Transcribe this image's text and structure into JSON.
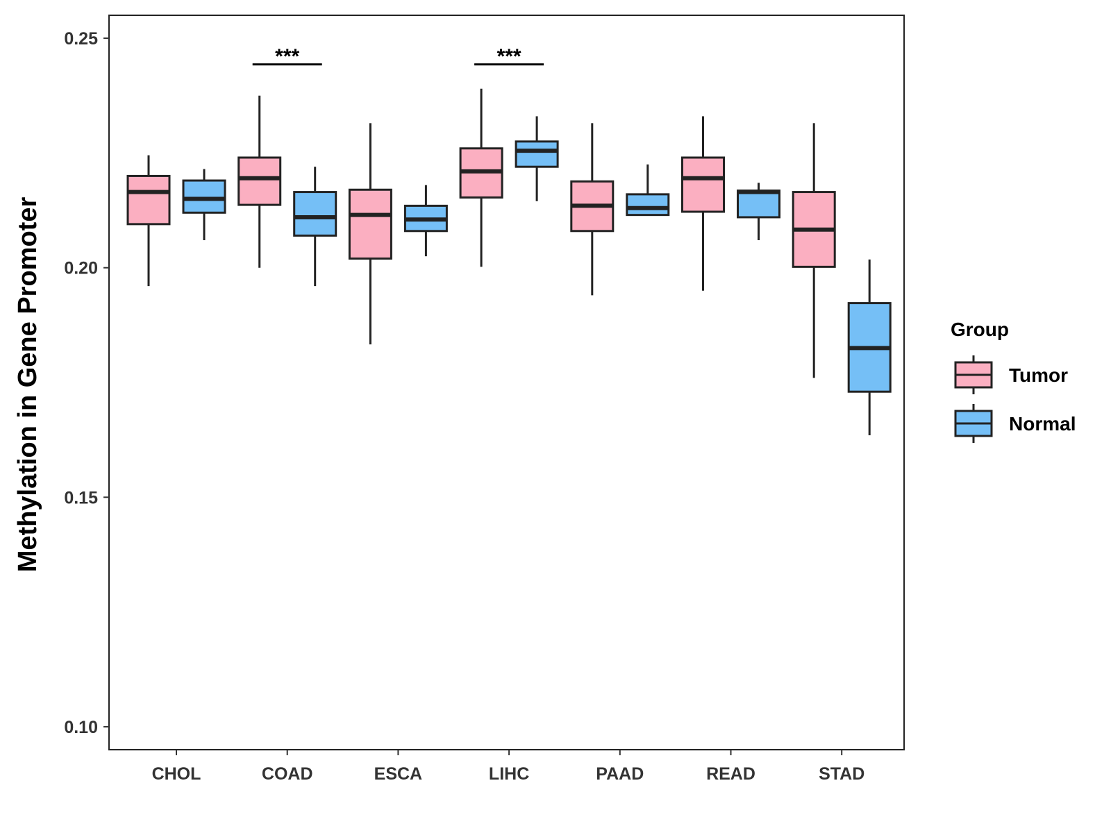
{
  "chart_data": {
    "type": "boxplot",
    "title": "",
    "xlabel": "",
    "ylabel": "Methylation in Gene Promoter",
    "ylim": [
      0.095,
      0.255
    ],
    "yticks": [
      0.1,
      0.15,
      0.2,
      0.25
    ],
    "ytick_labels": [
      "0.10",
      "0.15",
      "0.20",
      "0.25"
    ],
    "categories": [
      "CHOL",
      "COAD",
      "ESCA",
      "LIHC",
      "PAAD",
      "READ",
      "STAD"
    ],
    "grid": false,
    "legend": {
      "title": "Group",
      "position": "right",
      "entries": [
        {
          "name": "Tumor",
          "color": "#FBAFC1"
        },
        {
          "name": "Normal",
          "color": "#75BFF6"
        }
      ]
    },
    "series": [
      {
        "name": "Tumor",
        "color": "#FBAFC1",
        "boxes": [
          {
            "whisker_low": 0.196,
            "q1": 0.2095,
            "median": 0.2165,
            "q3": 0.22,
            "whisker_high": 0.2245
          },
          {
            "whisker_low": 0.2,
            "q1": 0.2137,
            "median": 0.2195,
            "q3": 0.224,
            "whisker_high": 0.2375
          },
          {
            "whisker_low": 0.1833,
            "q1": 0.202,
            "median": 0.2115,
            "q3": 0.217,
            "whisker_high": 0.2315
          },
          {
            "whisker_low": 0.2002,
            "q1": 0.2153,
            "median": 0.221,
            "q3": 0.226,
            "whisker_high": 0.239
          },
          {
            "whisker_low": 0.194,
            "q1": 0.208,
            "median": 0.2135,
            "q3": 0.2188,
            "whisker_high": 0.2315
          },
          {
            "whisker_low": 0.195,
            "q1": 0.2122,
            "median": 0.2195,
            "q3": 0.224,
            "whisker_high": 0.233
          },
          {
            "whisker_low": 0.176,
            "q1": 0.2002,
            "median": 0.2083,
            "q3": 0.2165,
            "whisker_high": 0.2315
          }
        ]
      },
      {
        "name": "Normal",
        "color": "#75BFF6",
        "boxes": [
          {
            "whisker_low": 0.206,
            "q1": 0.212,
            "median": 0.215,
            "q3": 0.219,
            "whisker_high": 0.2215
          },
          {
            "whisker_low": 0.196,
            "q1": 0.207,
            "median": 0.211,
            "q3": 0.2165,
            "whisker_high": 0.222
          },
          {
            "whisker_low": 0.2025,
            "q1": 0.208,
            "median": 0.2105,
            "q3": 0.2135,
            "whisker_high": 0.218
          },
          {
            "whisker_low": 0.2145,
            "q1": 0.222,
            "median": 0.2255,
            "q3": 0.2275,
            "whisker_high": 0.233
          },
          {
            "whisker_low": 0.2115,
            "q1": 0.2115,
            "median": 0.213,
            "q3": 0.216,
            "whisker_high": 0.2225
          },
          {
            "whisker_low": 0.206,
            "q1": 0.211,
            "median": 0.2165,
            "q3": 0.2168,
            "whisker_high": 0.2185
          },
          {
            "whisker_low": 0.1635,
            "q1": 0.173,
            "median": 0.1825,
            "q3": 0.1923,
            "whisker_high": 0.2018
          }
        ]
      }
    ],
    "annotations": [
      {
        "category": "COAD",
        "label": "***",
        "y": 0.2443
      },
      {
        "category": "LIHC",
        "label": "***",
        "y": 0.2443
      }
    ]
  }
}
